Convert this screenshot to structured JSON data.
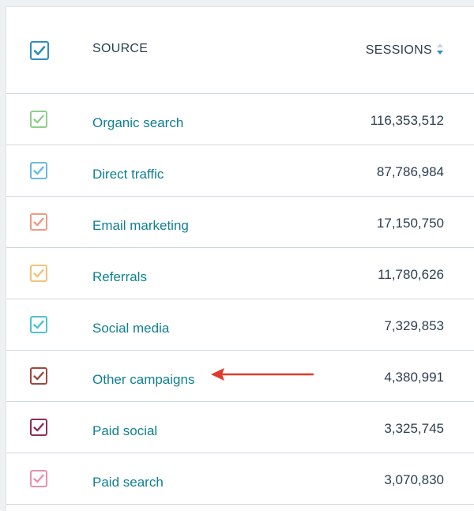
{
  "table": {
    "header": {
      "source_label": "SOURCE",
      "sessions_label": "SESSIONS",
      "select_all_checked": true,
      "select_all_color": "#2e8fbf",
      "sort_icon": "sort-descending-icon"
    },
    "rows": [
      {
        "source": "Organic search",
        "sessions": "116,353,512",
        "checked": true,
        "color": "#8fce8b"
      },
      {
        "source": "Direct traffic",
        "sessions": "87,786,984",
        "checked": true,
        "color": "#6bb8e6"
      },
      {
        "source": "Email marketing",
        "sessions": "17,150,750",
        "checked": true,
        "color": "#ee9a86"
      },
      {
        "source": "Referrals",
        "sessions": "11,780,626",
        "checked": true,
        "color": "#f2c27a"
      },
      {
        "source": "Social media",
        "sessions": "7,329,853",
        "checked": true,
        "color": "#4ec3cf"
      },
      {
        "source": "Other campaigns",
        "sessions": "4,380,991",
        "checked": true,
        "color": "#9b4a3f"
      },
      {
        "source": "Paid social",
        "sessions": "3,325,745",
        "checked": true,
        "color": "#8c2f5a"
      },
      {
        "source": "Paid search",
        "sessions": "3,070,830",
        "checked": true,
        "color": "#ea8fae"
      }
    ]
  },
  "annotation": {
    "arrow_color": "#e23a2a",
    "points_to": "Other campaigns"
  },
  "link_color": "#0f7f90"
}
